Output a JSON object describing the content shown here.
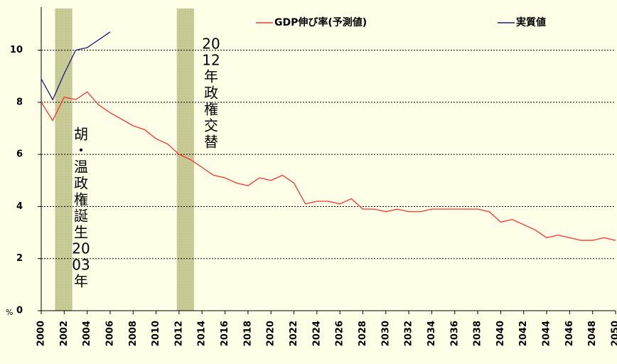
{
  "chart_data": {
    "type": "line",
    "x": [
      2000,
      2001,
      2002,
      2003,
      2004,
      2005,
      2006,
      2007,
      2008,
      2009,
      2010,
      2011,
      2012,
      2013,
      2014,
      2015,
      2016,
      2017,
      2018,
      2019,
      2020,
      2021,
      2022,
      2023,
      2024,
      2025,
      2026,
      2027,
      2028,
      2029,
      2030,
      2031,
      2032,
      2033,
      2034,
      2035,
      2036,
      2037,
      2038,
      2039,
      2040,
      2041,
      2042,
      2043,
      2044,
      2045,
      2046,
      2047,
      2048,
      2049,
      2050
    ],
    "series": [
      {
        "name": "GDP伸び率(予測値)",
        "color": "#ff3030",
        "values": [
          8.0,
          7.3,
          8.2,
          8.1,
          8.4,
          7.9,
          7.6,
          7.35,
          7.1,
          6.95,
          6.6,
          6.4,
          6.0,
          5.8,
          5.5,
          5.2,
          5.1,
          4.9,
          4.8,
          5.1,
          5.0,
          5.2,
          4.9,
          4.1,
          4.2,
          4.2,
          4.1,
          4.3,
          3.9,
          3.9,
          3.8,
          3.9,
          3.8,
          3.8,
          3.9,
          3.9,
          3.9,
          3.9,
          3.9,
          3.8,
          3.4,
          3.5,
          3.3,
          3.1,
          2.8,
          2.9,
          2.8,
          2.7,
          2.7,
          2.8,
          2.7
        ]
      },
      {
        "name": "実質値",
        "color": "#1a1a80",
        "values": [
          8.9,
          8.1,
          9.1,
          10.0,
          10.1,
          10.4,
          10.7,
          null,
          null,
          null,
          null,
          null,
          null,
          null,
          null,
          null,
          null,
          null,
          null,
          null,
          null,
          null,
          null,
          null,
          null,
          null,
          null,
          null,
          null,
          null,
          null,
          null,
          null,
          null,
          null,
          null,
          null,
          null,
          null,
          null,
          null,
          null,
          null,
          null,
          null,
          null,
          null,
          null,
          null,
          null,
          null
        ]
      }
    ],
    "xlim": [
      2000,
      2050
    ],
    "xticks": [
      2000,
      2002,
      2004,
      2006,
      2008,
      2010,
      2012,
      2014,
      2016,
      2018,
      2020,
      2022,
      2024,
      2026,
      2028,
      2030,
      2032,
      2034,
      2036,
      2038,
      2040,
      2042,
      2044,
      2046,
      2048,
      2050
    ],
    "ylim": [
      0,
      11.6
    ],
    "yticks": [
      0,
      2,
      4,
      6,
      8,
      10
    ],
    "y_label": "%",
    "grid": true,
    "shaded_periods": [
      [
        2001.2,
        2002.7
      ],
      [
        2011.8,
        2013.3
      ]
    ],
    "annotations": [
      {
        "lines": [
          "胡",
          "・",
          "温",
          "政",
          "権",
          "誕",
          "生",
          "20",
          "03",
          "年"
        ]
      },
      {
        "lines": [
          "20",
          "12",
          "年",
          "政",
          "権",
          "交",
          "替"
        ]
      }
    ]
  }
}
